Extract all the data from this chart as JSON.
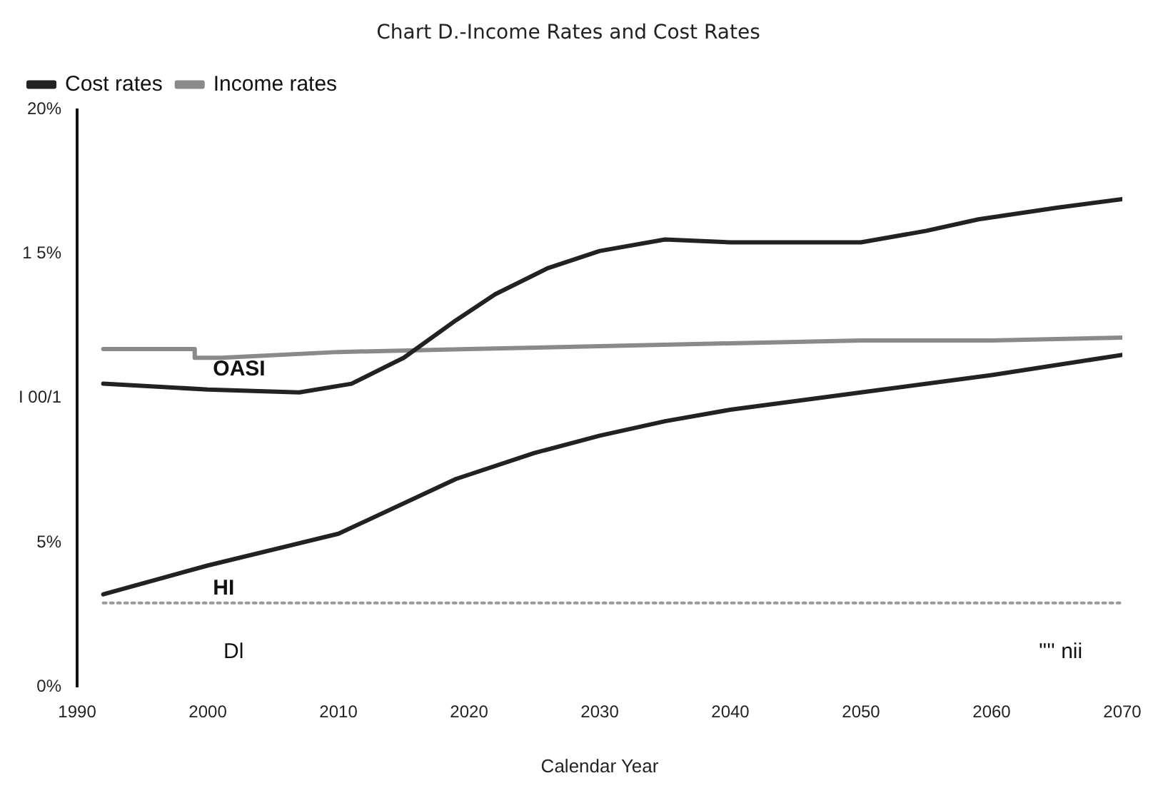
{
  "chart_data": {
    "type": "line",
    "title": "Chart D.-Income Rates and Cost Rates",
    "xlabel": "Calendar Year",
    "xlim": [
      1990,
      2070
    ],
    "xticks": [
      1990,
      2000,
      2010,
      2020,
      2030,
      2040,
      2050,
      2060,
      2070
    ],
    "ylim": [
      0,
      20
    ],
    "yticks": [
      {
        "value": 0,
        "label": "0%"
      },
      {
        "value": 5,
        "label": "5%"
      },
      {
        "value": 10,
        "label": "I 00/1"
      },
      {
        "value": 15,
        "label": "1 5%"
      },
      {
        "value": 20,
        "label": "20%"
      }
    ],
    "grid": false,
    "legend": "top left",
    "marker": "none",
    "series": [
      {
        "name": "Cost rates",
        "color": "#222222",
        "line_style": "solid",
        "x": [
          1992,
          2000,
          2007,
          2011,
          2015,
          2019,
          2022,
          2026,
          2030,
          2035,
          2040,
          2043,
          2050,
          2055,
          2059,
          2065,
          2070
        ],
        "values": [
          10.5,
          10.3,
          10.2,
          10.5,
          11.4,
          12.7,
          13.6,
          14.5,
          15.1,
          15.5,
          15.4,
          15.4,
          15.4,
          15.8,
          16.2,
          16.6,
          16.9
        ]
      },
      {
        "name": "Income rates",
        "color": "#8a8a8a",
        "line_style": "solid",
        "x": [
          1992,
          1999,
          1999,
          2001,
          2010,
          2020,
          2030,
          2040,
          2050,
          2060,
          2070
        ],
        "values": [
          11.7,
          11.7,
          11.4,
          11.4,
          11.6,
          11.7,
          11.8,
          11.9,
          12.0,
          12.0,
          12.1
        ]
      },
      {
        "color": "#222222",
        "line_style": "solid",
        "x": [
          1992,
          2000,
          2010,
          2019,
          2025,
          2030,
          2035,
          2040,
          2050,
          2060,
          2070
        ],
        "values": [
          3.2,
          4.2,
          5.3,
          7.2,
          8.1,
          8.7,
          9.2,
          9.6,
          10.2,
          10.8,
          11.5
        ]
      },
      {
        "color": "#999999",
        "line_style": "dotted",
        "x": [
          1992,
          2070
        ],
        "values": [
          2.9,
          2.9
        ]
      }
    ],
    "annotations": [
      "OASI",
      "HI",
      "Dl",
      "'''' nii"
    ]
  }
}
